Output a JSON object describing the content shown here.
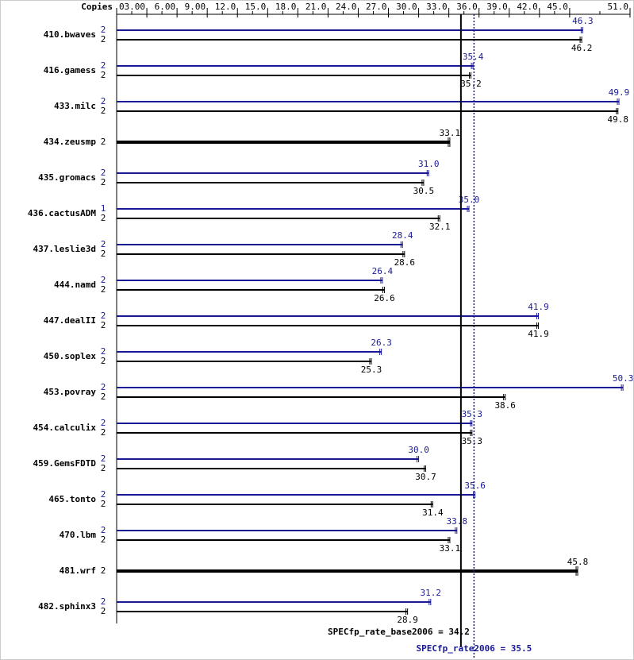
{
  "chart_data": {
    "type": "bar",
    "copies_label": "Copies",
    "categories": [
      "410.bwaves",
      "416.gamess",
      "433.milc",
      "434.zeusmp",
      "435.gromacs",
      "436.cactusADM",
      "437.leslie3d",
      "444.namd",
      "447.dealII",
      "450.soplex",
      "453.povray",
      "454.calculix",
      "459.GemsFDTD",
      "465.tonto",
      "470.lbm",
      "481.wrf",
      "482.sphinx3"
    ],
    "series": [
      {
        "color": "#191996",
        "copies": [
          2,
          2,
          2,
          null,
          2,
          1,
          2,
          2,
          2,
          2,
          2,
          2,
          2,
          2,
          2,
          null,
          2
        ],
        "values": [
          46.3,
          35.4,
          49.9,
          null,
          31.0,
          35.0,
          28.4,
          26.4,
          41.9,
          26.3,
          50.3,
          35.3,
          30.0,
          35.6,
          33.8,
          null,
          31.2
        ],
        "value_labels": [
          "46.3",
          "35.4",
          "49.9",
          null,
          "31.0",
          "35.0",
          "28.4",
          "26.4",
          "41.9",
          "26.3",
          "50.3",
          "35.3",
          "30.0",
          "35.6",
          "33.8",
          null,
          "31.2"
        ]
      },
      {
        "color": "#000000",
        "copies": [
          2,
          2,
          2,
          2,
          2,
          2,
          2,
          2,
          2,
          2,
          2,
          2,
          2,
          2,
          2,
          2,
          2
        ],
        "values": [
          46.2,
          35.2,
          49.8,
          33.1,
          30.5,
          32.1,
          28.6,
          26.6,
          41.9,
          25.3,
          38.6,
          35.3,
          30.7,
          31.4,
          33.1,
          45.8,
          28.9
        ],
        "value_labels": [
          "46.2",
          "35.2",
          "49.8",
          "33.1",
          "30.5",
          "32.1",
          "28.6",
          "26.6",
          "41.9",
          "25.3",
          "38.6",
          "35.3",
          "30.7",
          "31.4",
          "33.1",
          "45.8",
          "28.9"
        ]
      }
    ],
    "xlim": [
      0,
      51
    ],
    "xticks": [
      0,
      {
        "value": 3,
        "label": "3.00"
      },
      {
        "value": 6,
        "label": "6.00"
      },
      {
        "value": 9,
        "label": "9.00"
      },
      {
        "value": 12,
        "label": "12.0"
      },
      {
        "value": 15,
        "label": "15.0"
      },
      {
        "value": 18,
        "label": "18.0"
      },
      {
        "value": 21,
        "label": "21.0"
      },
      {
        "value": 24,
        "label": "24.0"
      },
      {
        "value": 27,
        "label": "27.0"
      },
      {
        "value": 30,
        "label": "30.0"
      },
      {
        "value": 33,
        "label": "33.0"
      },
      {
        "value": 36,
        "label": "36.0"
      },
      {
        "value": 39,
        "label": "39.0"
      },
      {
        "value": 42,
        "label": "42.0"
      },
      {
        "value": 45,
        "label": "45.0"
      },
      {
        "value": 51,
        "label": "51.0"
      }
    ],
    "reference_lines": [
      {
        "label": "SPECfp_rate_base2006 =",
        "value": 34.2,
        "color": "#000000",
        "style": "solid"
      },
      {
        "label": "SPECfp_rate2006 =",
        "value": 35.5,
        "color": "#191996",
        "style": "dotted"
      }
    ]
  }
}
